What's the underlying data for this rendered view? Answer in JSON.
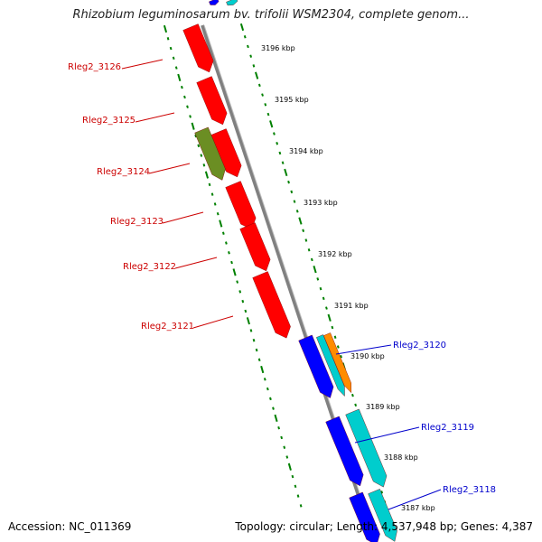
{
  "title": "Rhizobium leguminosarum bv. trifolii WSM2304, complete genom...",
  "footer": {
    "accession": "Accession: NC_011369",
    "summary": "Topology: circular; Length: 4,537,948 bp; Genes: 4,387"
  },
  "colors": {
    "gene_red": "#ff0000",
    "gene_olive": "#6b8e23",
    "gene_blue": "#0000ff",
    "gene_cyan": "#00cdcd",
    "gene_orange": "#ff8c00",
    "ticks": "#008000",
    "label_red": "#cc0000",
    "label_blue": "#0000cc",
    "backbone": "#808080"
  },
  "scale_labels": [
    "3196 kbp",
    "3195 kbp",
    "3194 kbp",
    "3193 kbp",
    "3192 kbp",
    "3191 kbp",
    "3190 kbp",
    "3189 kbp",
    "3188 kbp",
    "3187 kbp"
  ],
  "gene_labels_left": [
    "Rleg2_3126",
    "Rleg2_3125",
    "Rleg2_3124",
    "Rleg2_3123",
    "Rleg2_3122",
    "Rleg2_3121"
  ],
  "gene_labels_right": [
    "Rleg2_3120",
    "Rleg2_3119",
    "Rleg2_3118"
  ]
}
